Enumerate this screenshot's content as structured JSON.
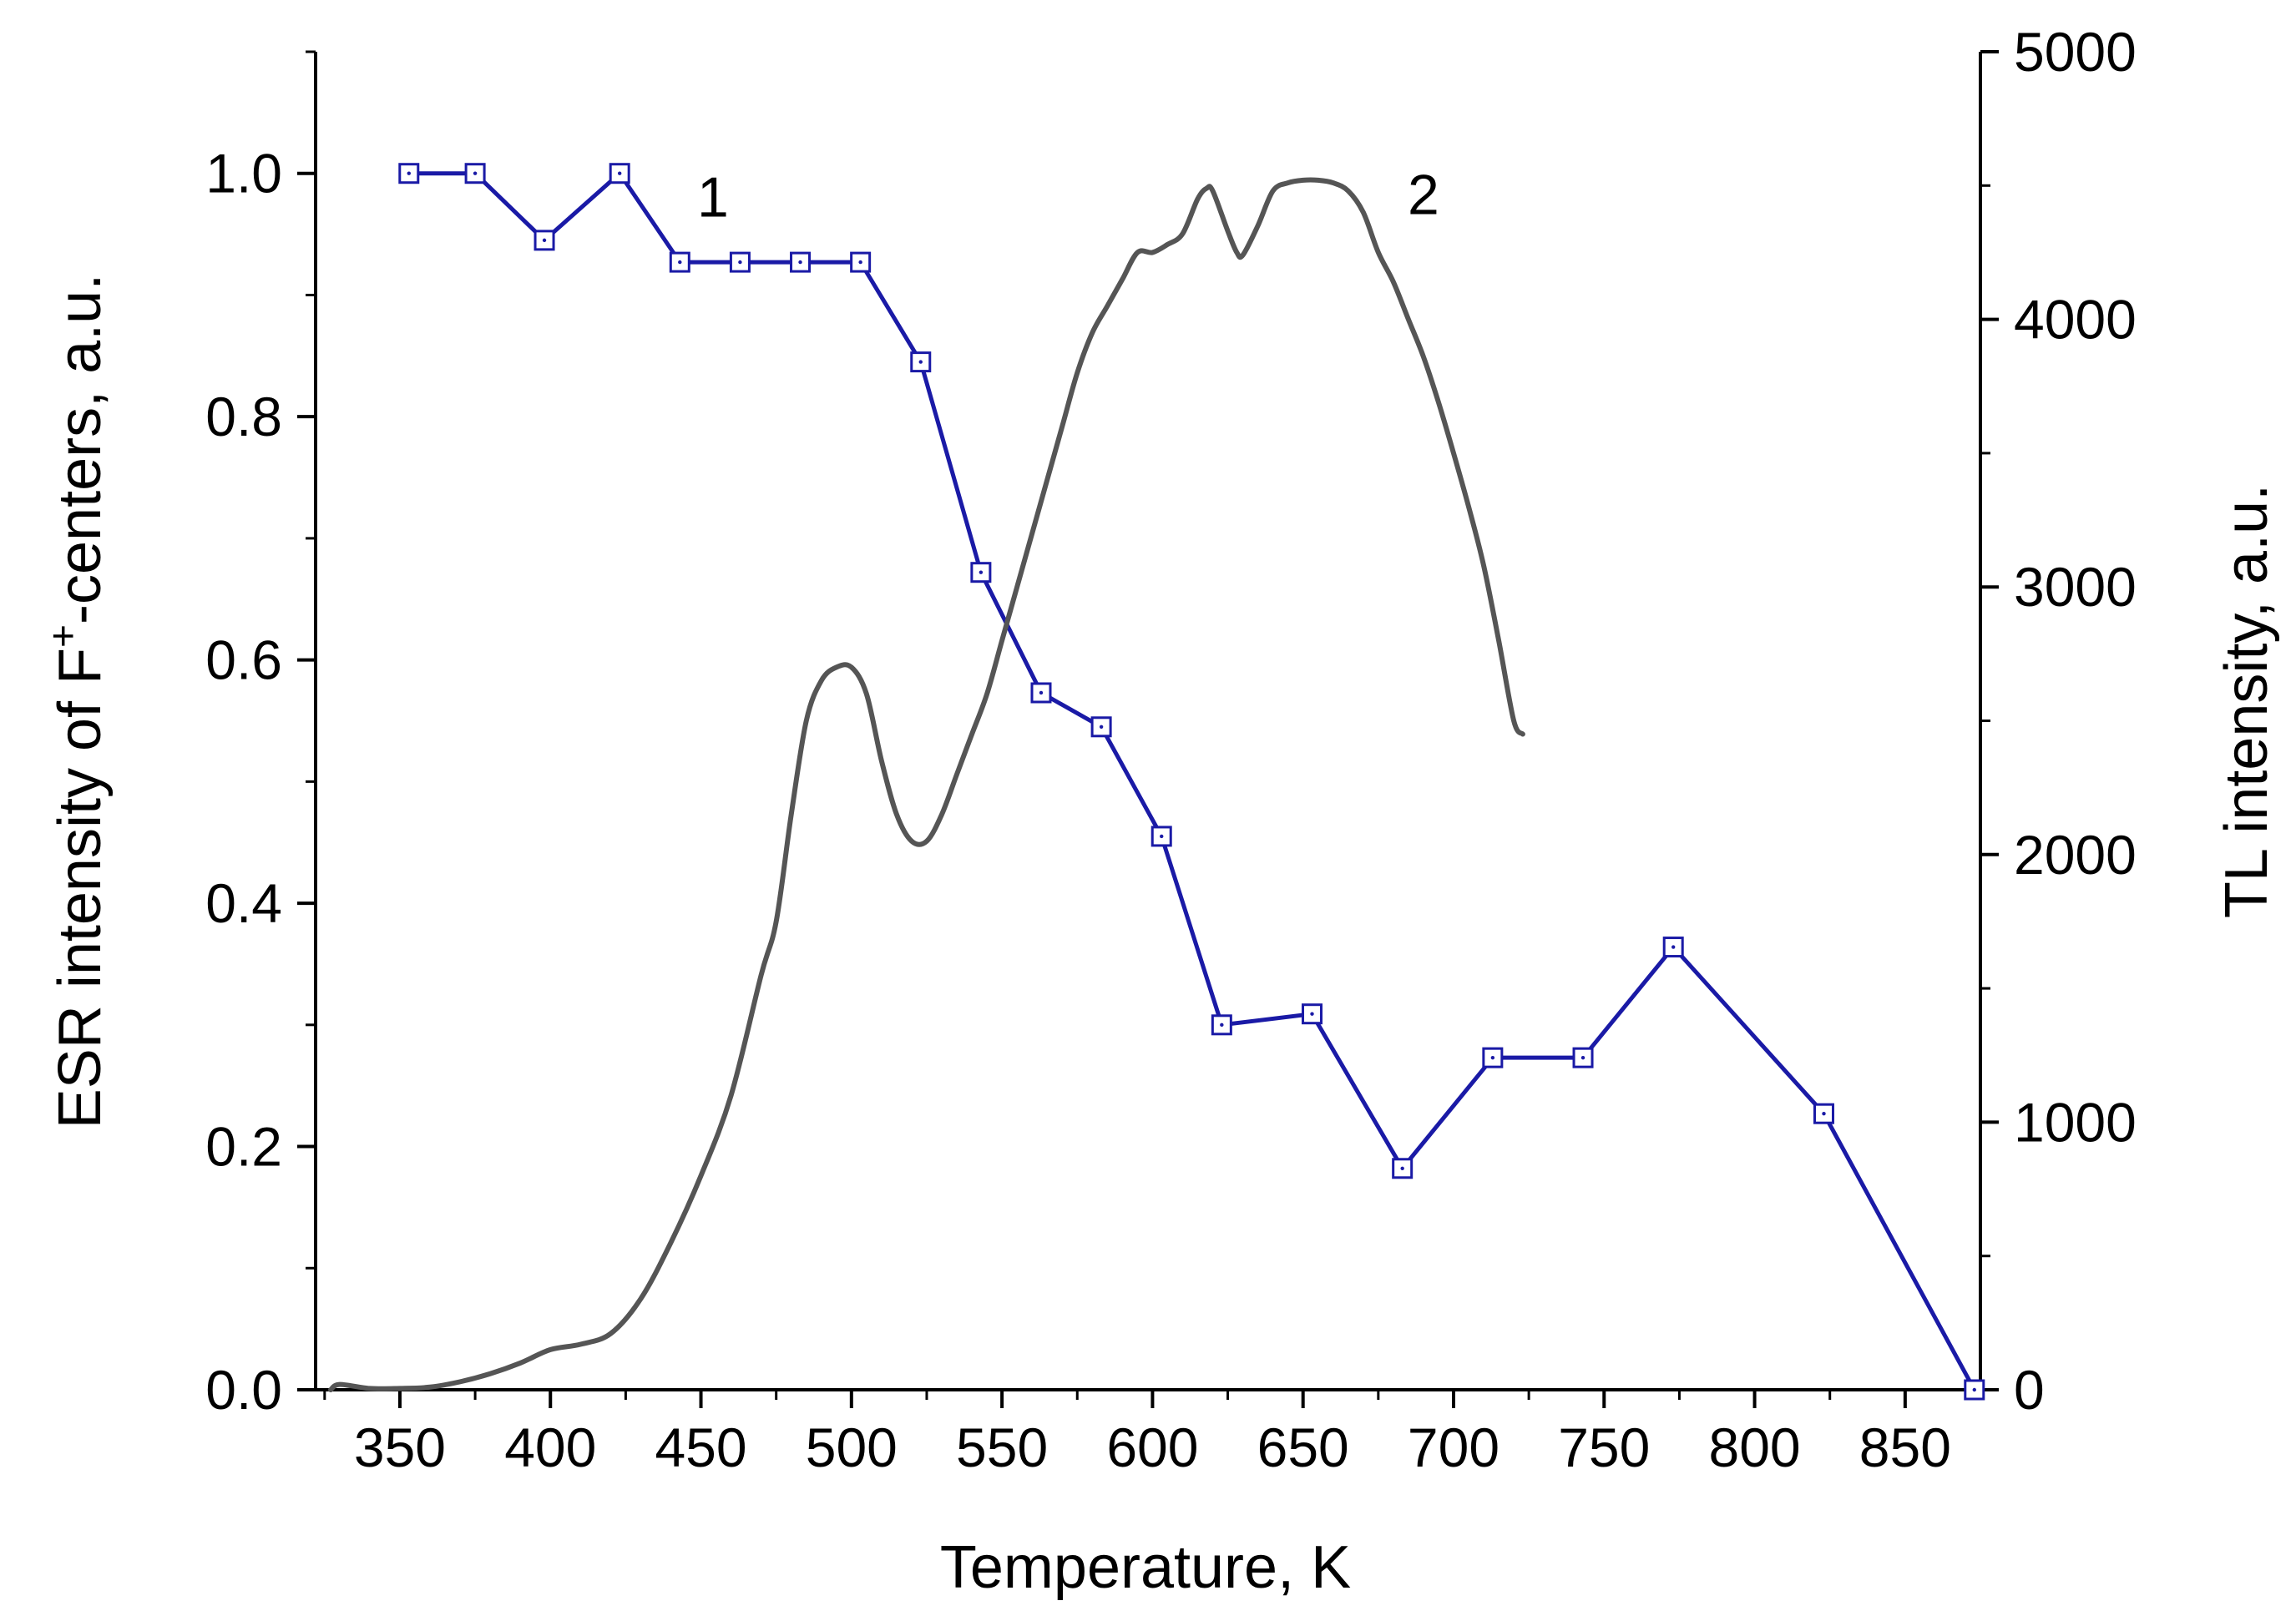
{
  "chart_data": {
    "type": "line",
    "title": "",
    "xlabel": "Temperature, K",
    "ylabel_left": "ESR intensity of F",
    "ylabel_left_sup": "+",
    "ylabel_left_suffix": "-centers, a.u.",
    "ylabel_right": "TL intensity, a.u.",
    "xlim": [
      322,
      875
    ],
    "ylim_left": [
      0,
      1.1
    ],
    "ylim_right": [
      0,
      5000
    ],
    "x_ticks": [
      350,
      400,
      450,
      500,
      550,
      600,
      650,
      700,
      750,
      800,
      850
    ],
    "y_left_ticks": [
      0.0,
      0.2,
      0.4,
      0.6,
      0.8,
      1.0
    ],
    "y_left_tick_labels": [
      "0.0",
      "0.2",
      "0.4",
      "0.6",
      "0.8",
      "1.0"
    ],
    "y_right_ticks": [
      0,
      1000,
      2000,
      3000,
      4000,
      5000
    ],
    "y_right_tick_labels": [
      "0",
      "1000",
      "2000",
      "3000",
      "4000",
      "5000"
    ],
    "grid": false,
    "series": [
      {
        "name": "1",
        "axis": "left",
        "color": "#1a1aa6",
        "marker": "square",
        "x": [
          353,
          375,
          398,
          423,
          443,
          463,
          483,
          503,
          523,
          543,
          563,
          583,
          603,
          623,
          653,
          683,
          713,
          743,
          773,
          823,
          873
        ],
        "y": [
          1.0,
          1.0,
          0.945,
          1.0,
          0.927,
          0.927,
          0.927,
          0.927,
          0.845,
          0.672,
          0.573,
          0.545,
          0.455,
          0.3,
          0.309,
          0.182,
          0.273,
          0.273,
          0.364,
          0.227,
          0.0
        ]
      },
      {
        "name": "2",
        "axis": "right",
        "color": "#555555",
        "marker": "none",
        "x": [
          327,
          330,
          340,
          350,
          360,
          370,
          380,
          390,
          400,
          410,
          420,
          430,
          440,
          450,
          460,
          470,
          475,
          480,
          485,
          490,
          495,
          500,
          505,
          510,
          515,
          520,
          525,
          530,
          535,
          540,
          545,
          550,
          555,
          560,
          565,
          570,
          575,
          580,
          585,
          590,
          595,
          600,
          605,
          610,
          615,
          618,
          620,
          625,
          628,
          630,
          635,
          640,
          645,
          650,
          655,
          660,
          665,
          670,
          675,
          680,
          685,
          690,
          695,
          700,
          705,
          710,
          715,
          720,
          723
        ],
        "y": [
          0,
          20,
          5,
          5,
          10,
          30,
          60,
          100,
          150,
          170,
          210,
          340,
          550,
          800,
          1100,
          1550,
          1750,
          2150,
          2500,
          2650,
          2700,
          2700,
          2600,
          2350,
          2150,
          2050,
          2050,
          2150,
          2300,
          2450,
          2600,
          2800,
          3000,
          3200,
          3400,
          3600,
          3800,
          3950,
          4050,
          4150,
          4250,
          4250,
          4280,
          4320,
          4450,
          4490,
          4480,
          4330,
          4250,
          4240,
          4350,
          4480,
          4510,
          4520,
          4520,
          4510,
          4480,
          4400,
          4250,
          4140,
          4000,
          3860,
          3690,
          3500,
          3300,
          3080,
          2800,
          2500,
          2450
        ]
      }
    ],
    "annotations": [
      {
        "text": "1",
        "series": "1"
      },
      {
        "text": "2",
        "series": "2"
      }
    ]
  }
}
